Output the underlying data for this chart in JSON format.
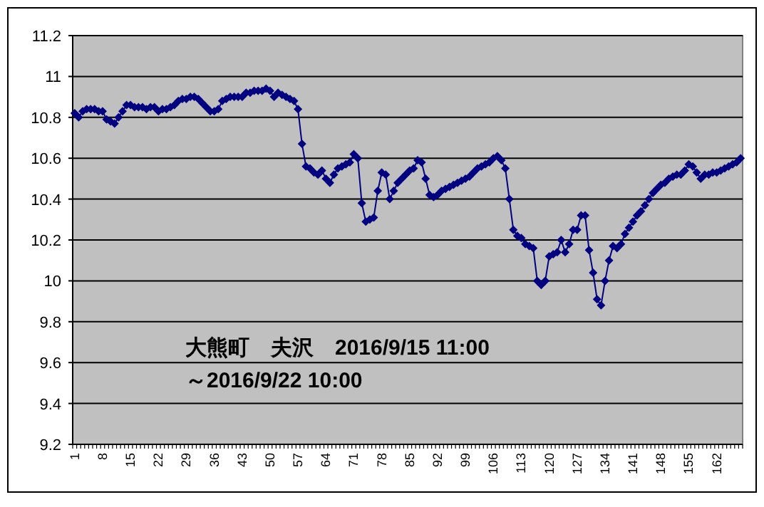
{
  "chart_data": {
    "type": "line",
    "categories": [
      "1",
      null,
      null,
      null,
      null,
      null,
      null,
      "8",
      null,
      null,
      null,
      null,
      null,
      null,
      "15",
      null,
      null,
      null,
      null,
      null,
      null,
      "22",
      null,
      null,
      null,
      null,
      null,
      null,
      "29",
      null,
      null,
      null,
      null,
      null,
      null,
      "36",
      null,
      null,
      null,
      null,
      null,
      null,
      "43",
      null,
      null,
      null,
      null,
      null,
      null,
      "50",
      null,
      null,
      null,
      null,
      null,
      null,
      "57",
      null,
      null,
      null,
      null,
      null,
      null,
      "64",
      null,
      null,
      null,
      null,
      null,
      null,
      "71",
      null,
      null,
      null,
      null,
      null,
      null,
      "78",
      null,
      null,
      null,
      null,
      null,
      null,
      "85",
      null,
      null,
      null,
      null,
      null,
      null,
      "92",
      null,
      null,
      null,
      null,
      null,
      null,
      "99",
      null,
      null,
      null,
      null,
      null,
      null,
      "106",
      null,
      null,
      null,
      null,
      null,
      null,
      "113",
      null,
      null,
      null,
      null,
      null,
      null,
      "120",
      null,
      null,
      null,
      null,
      null,
      null,
      "127",
      null,
      null,
      null,
      null,
      null,
      null,
      "134",
      null,
      null,
      null,
      null,
      null,
      null,
      "141",
      null,
      null,
      null,
      null,
      null,
      null,
      "148",
      null,
      null,
      null,
      null,
      null,
      null,
      "155",
      null,
      null,
      null,
      null,
      null,
      null,
      "162",
      null,
      null,
      null,
      null,
      null,
      null
    ],
    "series": [
      {
        "color": "#000080",
        "values": [
          10.82,
          10.8,
          10.83,
          10.84,
          10.84,
          10.84,
          10.83,
          10.83,
          10.79,
          10.78,
          10.77,
          10.8,
          10.83,
          10.86,
          10.86,
          10.85,
          10.85,
          10.85,
          10.84,
          10.85,
          10.85,
          10.83,
          10.84,
          10.84,
          10.85,
          10.86,
          10.88,
          10.89,
          10.89,
          10.9,
          10.9,
          10.89,
          10.87,
          10.85,
          10.83,
          10.83,
          10.84,
          10.88,
          10.89,
          10.9,
          10.9,
          10.9,
          10.9,
          10.92,
          10.92,
          10.93,
          10.93,
          10.93,
          10.94,
          10.93,
          10.9,
          10.92,
          10.91,
          10.9,
          10.89,
          10.88,
          10.84,
          10.67,
          10.56,
          10.55,
          10.53,
          10.52,
          10.54,
          10.5,
          10.48,
          10.52,
          10.55,
          10.56,
          10.57,
          10.58,
          10.62,
          10.6,
          10.38,
          10.29,
          10.3,
          10.31,
          10.44,
          10.53,
          10.52,
          10.4,
          10.44,
          10.48,
          10.5,
          10.52,
          10.54,
          10.55,
          10.59,
          10.58,
          10.5,
          10.42,
          10.41,
          10.42,
          10.44,
          10.45,
          10.46,
          10.47,
          10.48,
          10.49,
          10.5,
          10.51,
          10.53,
          10.55,
          10.56,
          10.57,
          10.58,
          10.6,
          10.61,
          10.59,
          10.55,
          10.4,
          10.25,
          10.22,
          10.21,
          10.18,
          10.17,
          10.16,
          10.0,
          9.98,
          10.0,
          10.12,
          10.13,
          10.14,
          10.2,
          10.14,
          10.18,
          10.25,
          10.25,
          10.32,
          10.32,
          10.15,
          10.04,
          9.91,
          9.88,
          10.0,
          10.1,
          10.17,
          10.16,
          10.18,
          10.23,
          10.26,
          10.29,
          10.32,
          10.34,
          10.37,
          10.4,
          10.43,
          10.45,
          10.47,
          10.48,
          10.5,
          10.51,
          10.52,
          10.52,
          10.54,
          10.57,
          10.56,
          10.53,
          10.5,
          10.52,
          10.52,
          10.53,
          10.53,
          10.54,
          10.55,
          10.56,
          10.57,
          10.58,
          10.6
        ]
      }
    ],
    "ylim": [
      9.2,
      11.2
    ],
    "yticks": [
      9.2,
      9.4,
      9.6,
      9.8,
      10,
      10.2,
      10.4,
      10.6,
      10.8,
      11,
      11.2
    ],
    "grid": "y",
    "marker": "diamond",
    "line_style": "solid",
    "annotations": [
      "大熊町　夫沢　2016/9/15 11:00",
      "～2016/9/22 10:00"
    ]
  }
}
